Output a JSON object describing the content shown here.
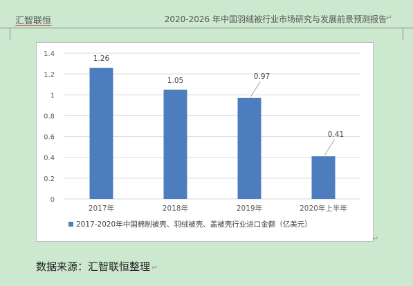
{
  "header": {
    "brand": "汇智联恒",
    "doc_title": "2020-2026 年中国羽绒被行业市场研究与发展前景预测报告"
  },
  "footer": {
    "source": "数据来源：汇智联恒整理"
  },
  "chart_data": {
    "type": "bar",
    "categories": [
      "2017年",
      "2018年",
      "2019年",
      "2020年上半年"
    ],
    "series": [
      {
        "name": "2017-2020年中国棉制被壳、羽绒被壳、盖被壳行业进口金额（亿美元）",
        "values": [
          1.26,
          1.05,
          0.97,
          0.41
        ]
      }
    ],
    "data_labels": [
      "1.26",
      "1.05",
      "0.97",
      "0.41"
    ],
    "y_ticks": [
      "0",
      "0.2",
      "0.4",
      "0.6",
      "0.8",
      "1",
      "1.2",
      "1.4"
    ],
    "ylim": [
      0,
      1.4
    ],
    "grid": true,
    "legend_position": "bottom",
    "bar_color": "#4e7dbf",
    "grid_color": "#d9d9d9"
  }
}
